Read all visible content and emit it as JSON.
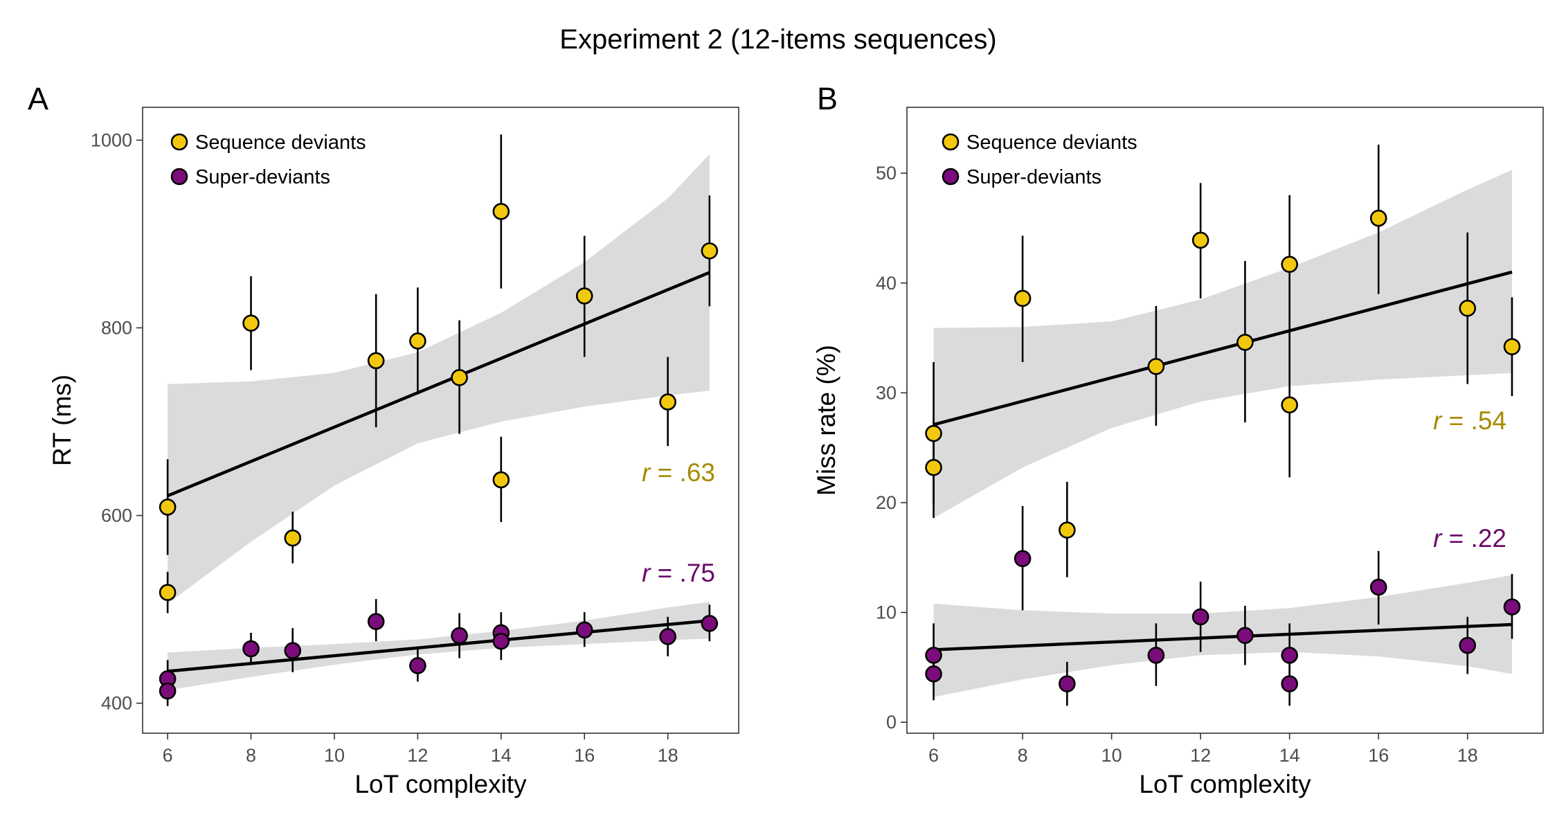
{
  "title": "Experiment 2 (12-items sequences)",
  "colors": {
    "sequence_deviants": "#F2C80F",
    "super_deviants": "#7B0C7B",
    "r_sequence_text": "#A68A00",
    "r_super_text": "#6A0A6A",
    "ribbon": "#D9D9D9",
    "fit_line": "#000000",
    "panel_border": "#333333",
    "tick_label": "#4d4d4d"
  },
  "chart_data": [
    {
      "panel": "A",
      "type": "scatter",
      "xlabel": "LoT complexity",
      "ylabel": "RT (ms)",
      "xlim": [
        5.4,
        19.7
      ],
      "ylim": [
        368,
        1035
      ],
      "xticks": [
        6,
        8,
        10,
        12,
        14,
        16,
        18
      ],
      "yticks": [
        400,
        600,
        800,
        1000
      ],
      "legend_position": "top-left",
      "legend": [
        "Sequence deviants",
        "Super-deviants"
      ],
      "series": [
        {
          "name": "Sequence deviants",
          "color_key": "sequence_deviants",
          "points": [
            {
              "x": 6,
              "y": 609,
              "lo": 558,
              "hi": 660
            },
            {
              "x": 6,
              "y": 518,
              "lo": 496,
              "hi": 540
            },
            {
              "x": 8,
              "y": 805,
              "lo": 755,
              "hi": 855
            },
            {
              "x": 9,
              "y": 576,
              "lo": 549,
              "hi": 604
            },
            {
              "x": 11,
              "y": 765,
              "lo": 694,
              "hi": 836
            },
            {
              "x": 12,
              "y": 786,
              "lo": 729,
              "hi": 843
            },
            {
              "x": 13,
              "y": 747,
              "lo": 687,
              "hi": 808
            },
            {
              "x": 14,
              "y": 924,
              "lo": 842,
              "hi": 1006
            },
            {
              "x": 14,
              "y": 638,
              "lo": 593,
              "hi": 684
            },
            {
              "x": 16,
              "y": 834,
              "lo": 769,
              "hi": 898
            },
            {
              "x": 18,
              "y": 721,
              "lo": 674,
              "hi": 769
            },
            {
              "x": 19,
              "y": 882,
              "lo": 823,
              "hi": 941
            }
          ],
          "fit": {
            "x": [
              6,
              19
            ],
            "y": [
              621,
              859
            ]
          },
          "band": {
            "x": [
              6,
              8,
              10,
              12,
              14,
              16,
              18,
              19
            ],
            "lo": [
              506,
              572,
              632,
              677,
              700,
              716,
              728,
              733
            ],
            "hi": [
              740,
              743,
              752,
              774,
              816,
              870,
              938,
              985
            ]
          },
          "r_label": "r = .63",
          "r_color_key": "r_sequence_text"
        },
        {
          "name": "Super-deviants",
          "color_key": "super_deviants",
          "points": [
            {
              "x": 6,
              "y": 426,
              "lo": 410,
              "hi": 446
            },
            {
              "x": 6,
              "y": 413,
              "lo": 397,
              "hi": 429
            },
            {
              "x": 8,
              "y": 458,
              "lo": 441,
              "hi": 475
            },
            {
              "x": 9,
              "y": 456,
              "lo": 433,
              "hi": 480
            },
            {
              "x": 11,
              "y": 487,
              "lo": 466,
              "hi": 511
            },
            {
              "x": 12,
              "y": 440,
              "lo": 423,
              "hi": 458
            },
            {
              "x": 13,
              "y": 472,
              "lo": 448,
              "hi": 496
            },
            {
              "x": 14,
              "y": 475,
              "lo": 454,
              "hi": 497
            },
            {
              "x": 14,
              "y": 466,
              "lo": 446,
              "hi": 485
            },
            {
              "x": 16,
              "y": 478,
              "lo": 460,
              "hi": 497
            },
            {
              "x": 18,
              "y": 471,
              "lo": 450,
              "hi": 492
            },
            {
              "x": 19,
              "y": 485,
              "lo": 466,
              "hi": 505
            }
          ],
          "fit": {
            "x": [
              6,
              19
            ],
            "y": [
              434,
              488
            ]
          },
          "band": {
            "x": [
              6,
              8,
              10,
              12,
              14,
              16,
              18,
              19
            ],
            "lo": [
              414,
              428,
              441,
              452,
              459,
              463,
              467,
              469
            ],
            "hi": [
              454,
              459,
              463,
              468,
              477,
              488,
              502,
              508
            ]
          },
          "r_label": "r = .75",
          "r_color_key": "r_super_text"
        }
      ]
    },
    {
      "panel": "B",
      "type": "scatter",
      "xlabel": "LoT complexity",
      "ylabel": "Miss rate (%)",
      "xlim": [
        5.4,
        19.7
      ],
      "ylim": [
        -1,
        56
      ],
      "xticks": [
        6,
        8,
        10,
        12,
        14,
        16,
        18
      ],
      "yticks": [
        0,
        10,
        20,
        30,
        40,
        50
      ],
      "legend_position": "top-left",
      "legend": [
        "Sequence deviants",
        "Super-deviants"
      ],
      "series": [
        {
          "name": "Sequence deviants",
          "color_key": "sequence_deviants",
          "points": [
            {
              "x": 6,
              "y": 26.3,
              "lo": 19.8,
              "hi": 32.8
            },
            {
              "x": 6,
              "y": 23.2,
              "lo": 18.6,
              "hi": 27.7
            },
            {
              "x": 8,
              "y": 38.6,
              "lo": 32.8,
              "hi": 44.3
            },
            {
              "x": 9,
              "y": 17.5,
              "lo": 13.2,
              "hi": 21.9
            },
            {
              "x": 11,
              "y": 32.4,
              "lo": 27.0,
              "hi": 37.9
            },
            {
              "x": 12,
              "y": 43.9,
              "lo": 38.6,
              "hi": 49.1
            },
            {
              "x": 13,
              "y": 34.6,
              "lo": 27.3,
              "hi": 42.0
            },
            {
              "x": 14,
              "y": 41.7,
              "lo": 35.3,
              "hi": 48.0
            },
            {
              "x": 14,
              "y": 28.9,
              "lo": 22.3,
              "hi": 35.6
            },
            {
              "x": 16,
              "y": 45.9,
              "lo": 39.0,
              "hi": 52.6
            },
            {
              "x": 18,
              "y": 37.7,
              "lo": 30.8,
              "hi": 44.6
            },
            {
              "x": 19,
              "y": 34.2,
              "lo": 29.7,
              "hi": 38.7
            }
          ],
          "fit": {
            "x": [
              6,
              19
            ],
            "y": [
              27.1,
              41.0
            ]
          },
          "band": {
            "x": [
              6,
              8,
              10,
              12,
              14,
              16,
              18,
              19
            ],
            "lo": [
              18.6,
              23.2,
              26.8,
              29.2,
              30.6,
              31.2,
              31.6,
              31.8
            ],
            "hi": [
              35.9,
              36.0,
              36.5,
              38.5,
              41.4,
              44.6,
              48.5,
              50.3
            ]
          },
          "r_label": "r = .54",
          "r_color_key": "r_sequence_text"
        },
        {
          "name": "Super-deviants",
          "color_key": "super_deviants",
          "points": [
            {
              "x": 6,
              "y": 6.1,
              "lo": 3.3,
              "hi": 9.0
            },
            {
              "x": 6,
              "y": 4.4,
              "lo": 2.0,
              "hi": 6.8
            },
            {
              "x": 8,
              "y": 14.9,
              "lo": 10.2,
              "hi": 19.7
            },
            {
              "x": 9,
              "y": 3.5,
              "lo": 1.5,
              "hi": 5.5
            },
            {
              "x": 11,
              "y": 6.1,
              "lo": 3.3,
              "hi": 9.0
            },
            {
              "x": 12,
              "y": 9.6,
              "lo": 6.4,
              "hi": 12.8
            },
            {
              "x": 13,
              "y": 7.9,
              "lo": 5.2,
              "hi": 10.6
            },
            {
              "x": 14,
              "y": 6.1,
              "lo": 3.3,
              "hi": 9.0
            },
            {
              "x": 14,
              "y": 3.5,
              "lo": 1.5,
              "hi": 5.5
            },
            {
              "x": 16,
              "y": 12.3,
              "lo": 8.9,
              "hi": 15.6
            },
            {
              "x": 18,
              "y": 7.0,
              "lo": 4.4,
              "hi": 9.6
            },
            {
              "x": 19,
              "y": 10.5,
              "lo": 7.6,
              "hi": 13.5
            }
          ],
          "fit": {
            "x": [
              6,
              19
            ],
            "y": [
              6.6,
              8.9
            ]
          },
          "band": {
            "x": [
              6,
              8,
              10,
              12,
              14,
              16,
              18,
              19
            ],
            "lo": [
              2.3,
              3.9,
              5.2,
              6.1,
              6.4,
              6.0,
              5.1,
              4.4
            ],
            "hi": [
              10.8,
              10.2,
              9.9,
              9.9,
              10.4,
              11.4,
              12.7,
              13.4
            ]
          },
          "r_label": "r = .22",
          "r_color_key": "r_super_text"
        }
      ]
    }
  ]
}
